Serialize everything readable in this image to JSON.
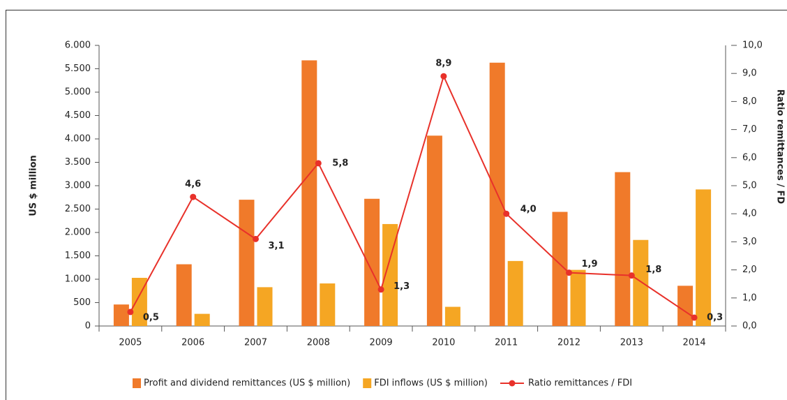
{
  "chart_data": {
    "type": "bar_line",
    "categories": [
      "2005",
      "2006",
      "2007",
      "2008",
      "2009",
      "2010",
      "2011",
      "2012",
      "2013",
      "2014"
    ],
    "series": [
      {
        "name": "Profit and dividend remittances (US $ million)",
        "color": "#f07a2a",
        "type": "bar",
        "values": [
          460,
          1320,
          2700,
          5680,
          2720,
          4070,
          5630,
          2440,
          3290,
          860
        ]
      },
      {
        "name": "FDI inflows (US $ million)",
        "color": "#f5a623",
        "type": "bar",
        "values": [
          1030,
          260,
          830,
          910,
          2180,
          410,
          1390,
          1200,
          1840,
          2920
        ]
      },
      {
        "name": "Ratio remittances / FDI",
        "color": "#e8312a",
        "type": "line",
        "axis": "y2",
        "values": [
          0.5,
          4.6,
          3.1,
          5.8,
          1.3,
          8.9,
          4.0,
          1.9,
          1.8,
          0.3
        ],
        "value_labels": [
          "0,5",
          "4,6",
          "3,1",
          "5,8",
          "1,3",
          "8,9",
          "4,0",
          "1,9",
          "1,8",
          "0,3"
        ]
      }
    ],
    "ylabel": "US $ million",
    "y2label": "Ratio remittances / FD",
    "ylim": [
      0,
      6000
    ],
    "yticks": [
      0,
      500,
      {
        "value": 1000,
        "label": "1.000"
      },
      {
        "value": 1500,
        "label": "1.500"
      },
      {
        "value": 2000,
        "label": "2.000"
      },
      {
        "value": 2500,
        "label": "2.500"
      },
      {
        "value": 3000,
        "label": "3.000"
      },
      {
        "value": 3500,
        "label": "3.500"
      },
      {
        "value": 4000,
        "label": "4.000"
      },
      {
        "value": 4500,
        "label": "4.500"
      },
      {
        "value": 5000,
        "label": "5.000"
      },
      {
        "value": 5500,
        "label": "5.500"
      },
      {
        "value": 6000,
        "label": "6.000"
      }
    ],
    "y2lim": [
      0,
      10
    ],
    "y2ticks": [
      {
        "value": 0,
        "label": "0,0"
      },
      {
        "value": 1,
        "label": "1,0"
      },
      {
        "value": 2,
        "label": "2,0"
      },
      {
        "value": 3,
        "label": "3,0"
      },
      {
        "value": 4,
        "label": "4,0"
      },
      {
        "value": 5,
        "label": "5,0"
      },
      {
        "value": 6,
        "label": "6,0"
      },
      {
        "value": 7,
        "label": "7,0"
      },
      {
        "value": 8,
        "label": "8,0"
      },
      {
        "value": 9,
        "label": "9,0"
      },
      {
        "value": 10,
        "label": "10,0"
      }
    ],
    "legend": "bottom"
  }
}
